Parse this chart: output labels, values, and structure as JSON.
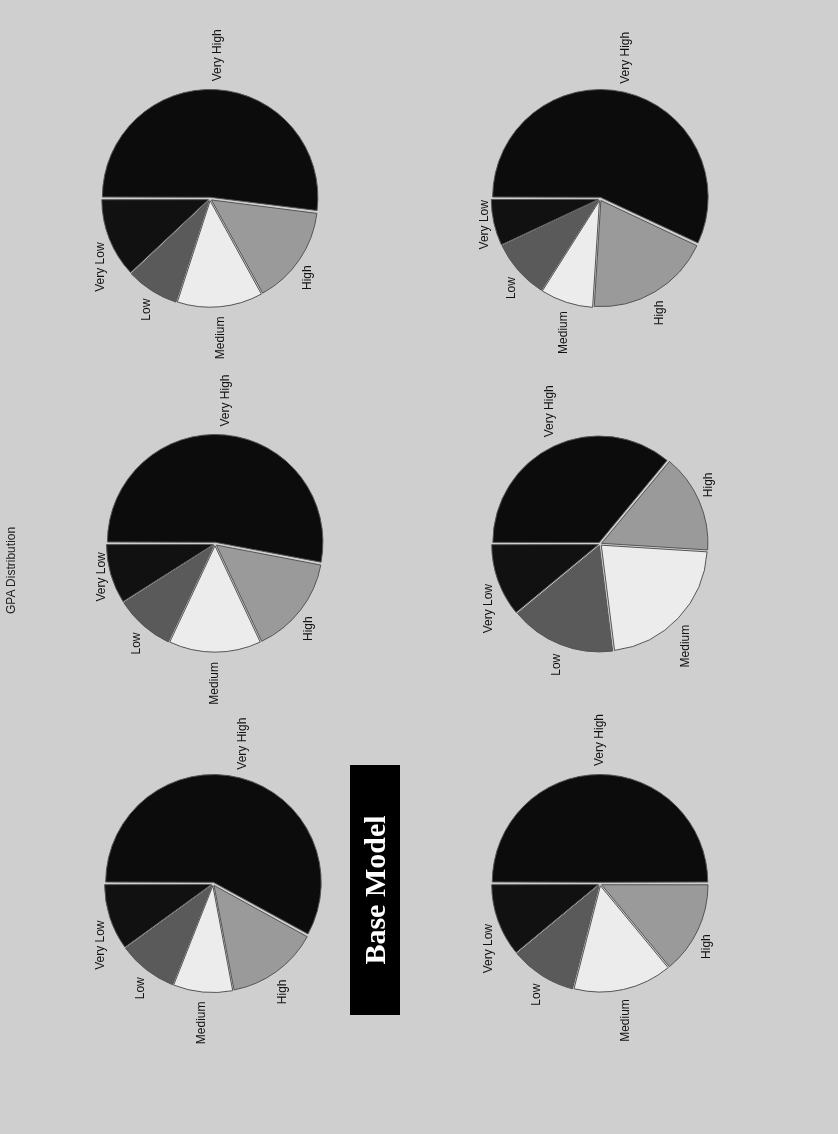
{
  "chart_data": [
    {
      "type": "pie",
      "title": "GPA Distribution",
      "annotations": [
        "Base Model"
      ],
      "categories": [
        "Very High",
        "High",
        "Medium",
        "Low",
        "Very Low"
      ],
      "values": [
        58,
        14,
        9,
        9,
        10
      ],
      "colors": [
        "#0c0c0c",
        "#9a9a9a",
        "#ececec",
        "#5a5a5a",
        "#111111"
      ],
      "legend": false
    },
    {
      "type": "pie",
      "categories": [
        "Very High",
        "High",
        "Medium",
        "Low",
        "Very Low"
      ],
      "values": [
        53,
        15,
        14,
        9,
        9
      ],
      "colors": [
        "#0c0c0c",
        "#9a9a9a",
        "#ececec",
        "#5a5a5a",
        "#111111"
      ],
      "legend": false
    },
    {
      "type": "pie",
      "categories": [
        "Very High",
        "High",
        "Medium",
        "Low",
        "Very Low"
      ],
      "values": [
        52,
        15,
        13,
        8,
        12
      ],
      "colors": [
        "#0c0c0c",
        "#9a9a9a",
        "#ececec",
        "#5a5a5a",
        "#111111"
      ],
      "legend": false
    },
    {
      "type": "pie",
      "categories": [
        "Very High",
        "High",
        "Medium",
        "Low",
        "Very Low"
      ],
      "values": [
        50,
        14,
        15,
        10,
        11
      ],
      "colors": [
        "#0c0c0c",
        "#9a9a9a",
        "#ececec",
        "#5a5a5a",
        "#111111"
      ],
      "legend": false
    },
    {
      "type": "pie",
      "categories": [
        "Very High",
        "High",
        "Medium",
        "Low",
        "Very Low"
      ],
      "values": [
        36,
        15,
        22,
        16,
        11
      ],
      "colors": [
        "#0c0c0c",
        "#9a9a9a",
        "#ececec",
        "#5a5a5a",
        "#111111"
      ],
      "legend": false
    },
    {
      "type": "pie",
      "categories": [
        "Very High",
        "High",
        "Medium",
        "Low",
        "Very Low"
      ],
      "values": [
        57,
        19,
        8,
        9,
        7
      ],
      "colors": [
        "#0c0c0c",
        "#9a9a9a",
        "#ececec",
        "#5a5a5a",
        "#111111"
      ],
      "legend": false
    }
  ]
}
